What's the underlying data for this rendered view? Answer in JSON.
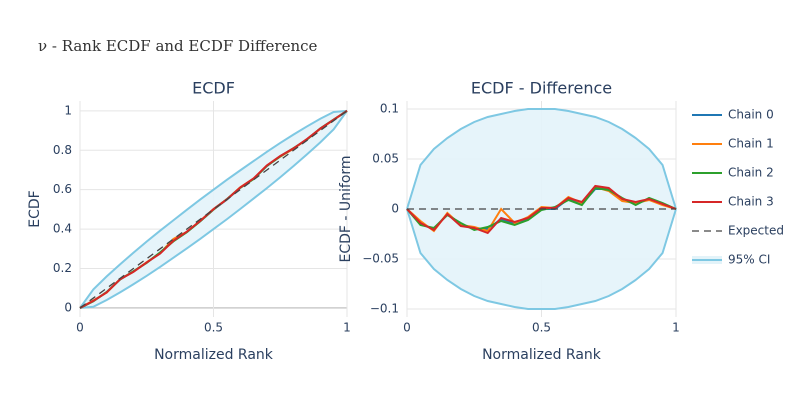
{
  "title": "ν - Rank ECDF and ECDF Difference",
  "chart_data": [
    {
      "type": "line",
      "title": "ECDF",
      "x_label": "Normalized Rank",
      "y_label": "ECDF",
      "x": [
        0,
        0.05,
        0.1,
        0.15,
        0.2,
        0.25,
        0.3,
        0.35,
        0.4,
        0.45,
        0.5,
        0.55,
        0.6,
        0.65,
        0.7,
        0.75,
        0.8,
        0.85,
        0.9,
        0.95,
        1
      ],
      "xlim": [
        0,
        1
      ],
      "ylim": [
        -0.046,
        1.05
      ],
      "xticks": [
        0,
        0.5,
        1
      ],
      "yticks": [
        0,
        0.2,
        0.4,
        0.6,
        0.8,
        1
      ],
      "grid": true,
      "series": [
        {
          "name": "Chain 0",
          "color": "#1f77b4",
          "values": [
            0,
            0.035,
            0.08,
            0.145,
            0.185,
            0.23,
            0.28,
            0.34,
            0.385,
            0.44,
            0.5,
            0.55,
            0.61,
            0.655,
            0.72,
            0.77,
            0.81,
            0.855,
            0.91,
            0.955,
            1
          ]
        },
        {
          "name": "Chain 1",
          "color": "#ff7f0e",
          "values": [
            0,
            0.038,
            0.078,
            0.146,
            0.184,
            0.232,
            0.278,
            0.35,
            0.386,
            0.442,
            0.502,
            0.551,
            0.612,
            0.656,
            0.722,
            0.768,
            0.808,
            0.856,
            0.909,
            0.954,
            1
          ]
        },
        {
          "name": "Chain 2",
          "color": "#2ca02c",
          "values": [
            0,
            0.034,
            0.081,
            0.144,
            0.186,
            0.229,
            0.282,
            0.338,
            0.384,
            0.439,
            0.499,
            0.552,
            0.609,
            0.654,
            0.721,
            0.769,
            0.811,
            0.854,
            0.911,
            0.956,
            1
          ]
        },
        {
          "name": "Chain 3",
          "color": "#d62728",
          "values": [
            0,
            0.036,
            0.079,
            0.145,
            0.183,
            0.231,
            0.276,
            0.341,
            0.387,
            0.441,
            0.501,
            0.551,
            0.611,
            0.657,
            0.723,
            0.771,
            0.81,
            0.857,
            0.91,
            0.955,
            1
          ]
        },
        {
          "name": "Expected",
          "color": "#444444",
          "dash": true,
          "values": [
            0,
            0.05,
            0.1,
            0.15,
            0.2,
            0.25,
            0.3,
            0.35,
            0.4,
            0.45,
            0.5,
            0.55,
            0.6,
            0.65,
            0.7,
            0.75,
            0.8,
            0.85,
            0.9,
            0.95,
            1
          ]
        },
        {
          "name": "95% CI",
          "color": "#7ec8e3",
          "fill": "#e3f3f9",
          "upper": [
            0,
            0.094,
            0.16,
            0.221,
            0.28,
            0.337,
            0.392,
            0.445,
            0.498,
            0.55,
            0.6,
            0.65,
            0.698,
            0.745,
            0.792,
            0.837,
            0.88,
            0.921,
            0.96,
            0.994,
            1
          ],
          "lower": [
            0,
            0.006,
            0.04,
            0.079,
            0.12,
            0.163,
            0.208,
            0.255,
            0.302,
            0.35,
            0.4,
            0.45,
            0.502,
            0.555,
            0.608,
            0.663,
            0.72,
            0.779,
            0.84,
            0.906,
            1
          ]
        }
      ]
    },
    {
      "type": "line",
      "title": "ECDF - Difference",
      "x_label": "Normalized Rank",
      "y_label": "ECDF - Uniform",
      "x": [
        0,
        0.05,
        0.1,
        0.15,
        0.2,
        0.25,
        0.3,
        0.35,
        0.4,
        0.45,
        0.5,
        0.55,
        0.6,
        0.65,
        0.7,
        0.75,
        0.8,
        0.85,
        0.9,
        0.95,
        1
      ],
      "xlim": [
        0,
        1
      ],
      "ylim": [
        -0.108,
        0.108
      ],
      "xticks": [
        0,
        0.5,
        1
      ],
      "yticks": [
        {
          "value": -0.1,
          "label": "−0.1"
        },
        {
          "value": -0.05,
          "label": "−0.05"
        },
        0,
        0.05,
        0.1
      ],
      "grid": true,
      "series": [
        {
          "color": "#1f77b4",
          "values": [
            0,
            -0.015,
            -0.02,
            -0.005,
            -0.015,
            -0.02,
            -0.02,
            -0.01,
            -0.015,
            -0.01,
            0,
            0,
            0.01,
            0.005,
            0.02,
            0.02,
            0.01,
            0.005,
            0.01,
            0.005,
            0
          ]
        },
        {
          "color": "#ff7f0e",
          "values": [
            0,
            -0.012,
            -0.022,
            -0.004,
            -0.016,
            -0.018,
            -0.022,
            0,
            -0.014,
            -0.008,
            0.002,
            0.001,
            0.012,
            0.006,
            0.022,
            0.018,
            0.008,
            0.006,
            0.009,
            0.004,
            0
          ]
        },
        {
          "color": "#2ca02c",
          "values": [
            0,
            -0.016,
            -0.019,
            -0.006,
            -0.014,
            -0.021,
            -0.018,
            -0.012,
            -0.016,
            -0.011,
            -0.001,
            0.002,
            0.009,
            0.004,
            0.021,
            0.019,
            0.011,
            0.004,
            0.011,
            0.006,
            0
          ]
        },
        {
          "color": "#d62728",
          "values": [
            0,
            -0.014,
            -0.021,
            -0.005,
            -0.017,
            -0.019,
            -0.024,
            -0.009,
            -0.013,
            -0.009,
            0.001,
            0.001,
            0.011,
            0.007,
            0.023,
            0.021,
            0.01,
            0.007,
            0.01,
            0.005,
            0
          ]
        },
        {
          "color": "#444444",
          "dash": true,
          "values": [
            0,
            0,
            0,
            0,
            0,
            0,
            0,
            0,
            0,
            0,
            0,
            0,
            0,
            0,
            0,
            0,
            0,
            0,
            0,
            0,
            0
          ]
        },
        {
          "color": "#7ec8e3",
          "fill": "#e3f3f9",
          "upper": [
            0,
            0.044,
            0.06,
            0.071,
            0.08,
            0.087,
            0.092,
            0.095,
            0.098,
            0.1,
            0.1,
            0.1,
            0.098,
            0.095,
            0.092,
            0.087,
            0.08,
            0.071,
            0.06,
            0.044,
            0
          ],
          "lower": [
            0,
            -0.044,
            -0.06,
            -0.071,
            -0.08,
            -0.087,
            -0.092,
            -0.095,
            -0.098,
            -0.1,
            -0.1,
            -0.1,
            -0.098,
            -0.095,
            -0.092,
            -0.087,
            -0.08,
            -0.071,
            -0.06,
            -0.044,
            0
          ]
        }
      ]
    }
  ]
}
